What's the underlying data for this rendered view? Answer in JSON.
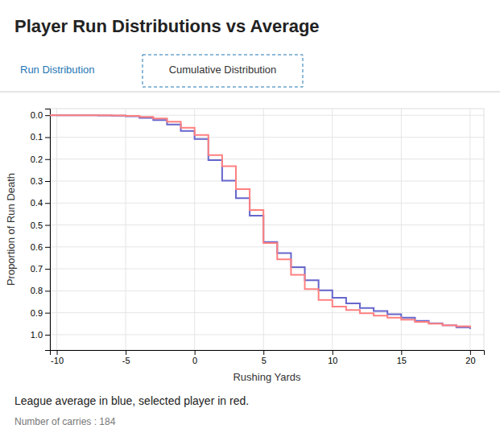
{
  "chart_data": {
    "type": "step",
    "title": "Player Run Distributions vs Average",
    "annotations": [
      "Run Distribution",
      "Cumulative Distribution",
      "League average in blue, selected player in red.",
      "Number of carries : 184"
    ],
    "x_label": "Rushing Yards",
    "y_label": "Proportion of Run Death",
    "x": [
      -10,
      -9,
      -8,
      -7,
      -6,
      -5,
      -4,
      -3,
      -2,
      -1,
      0,
      1,
      2,
      3,
      4,
      5,
      6,
      7,
      8,
      9,
      10,
      11,
      12,
      13,
      14,
      15,
      16,
      17,
      18,
      19,
      20
    ],
    "series": [
      {
        "color": "#6666cc",
        "values": [
          0.0,
          0.0,
          0.0,
          0.001,
          0.002,
          0.005,
          0.012,
          0.022,
          0.042,
          0.072,
          0.108,
          0.205,
          0.298,
          0.378,
          0.458,
          0.578,
          0.628,
          0.692,
          0.752,
          0.798,
          0.832,
          0.857,
          0.878,
          0.892,
          0.907,
          0.922,
          0.937,
          0.948,
          0.957,
          0.966,
          0.974
        ]
      },
      {
        "color": "#ff8080",
        "values": [
          0.0,
          0.0,
          0.0,
          0.0,
          0.001,
          0.003,
          0.008,
          0.015,
          0.03,
          0.057,
          0.09,
          0.182,
          0.232,
          0.337,
          0.432,
          0.582,
          0.657,
          0.727,
          0.792,
          0.842,
          0.872,
          0.888,
          0.902,
          0.913,
          0.922,
          0.932,
          0.942,
          0.95,
          0.957,
          0.962,
          0.968
        ]
      }
    ],
    "xlim": [
      -10.5,
      21
    ],
    "ylim": [
      1.07,
      -0.03
    ],
    "xticks": [
      -10,
      -5,
      0,
      5,
      10,
      15,
      20
    ],
    "yticks": [
      {
        "value": 0.0,
        "label": "0.0"
      },
      0.1,
      0.2,
      0.3,
      0.4,
      0.5,
      0.6,
      0.7,
      0.8,
      0.9,
      {
        "value": 1.0,
        "label": "1.0"
      }
    ],
    "grid": true
  }
}
